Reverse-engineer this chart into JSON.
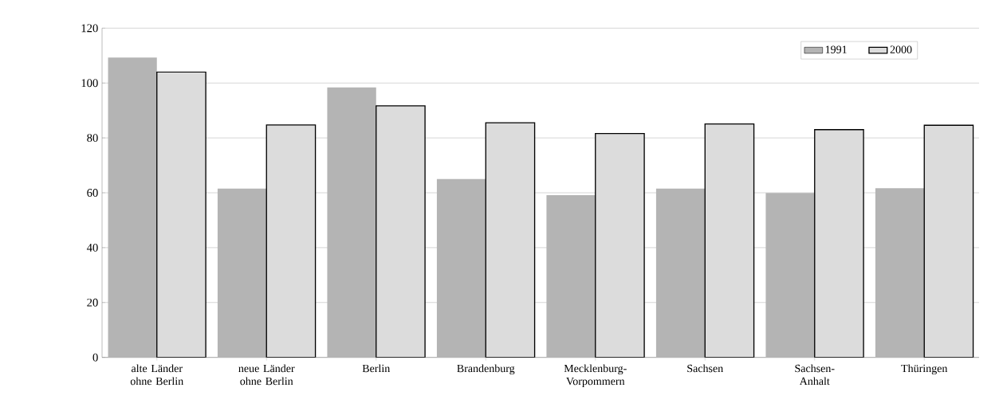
{
  "chart_data": {
    "type": "bar",
    "categories": [
      "alte Länder ohne Berlin",
      "neue Länder ohne Berlin",
      "Berlin",
      "Brandenburg",
      "Mecklenburg-Vorpommern",
      "Sachsen",
      "Sachsen-Anhalt",
      "Thüringen"
    ],
    "series": [
      {
        "name": "1991",
        "color": "#b4b4b4",
        "values": [
          109.3,
          61.5,
          98.4,
          65.0,
          59.1,
          61.5,
          59.9,
          61.7
        ]
      },
      {
        "name": "2000",
        "color": "#dcdcdc",
        "values": [
          104.0,
          84.7,
          91.7,
          85.5,
          81.6,
          85.1,
          83.0,
          84.6
        ]
      }
    ],
    "ylim": [
      0,
      120
    ],
    "yticks": [
      0,
      20,
      40,
      60,
      80,
      100,
      120
    ],
    "grid": "y",
    "legend": "top right"
  }
}
